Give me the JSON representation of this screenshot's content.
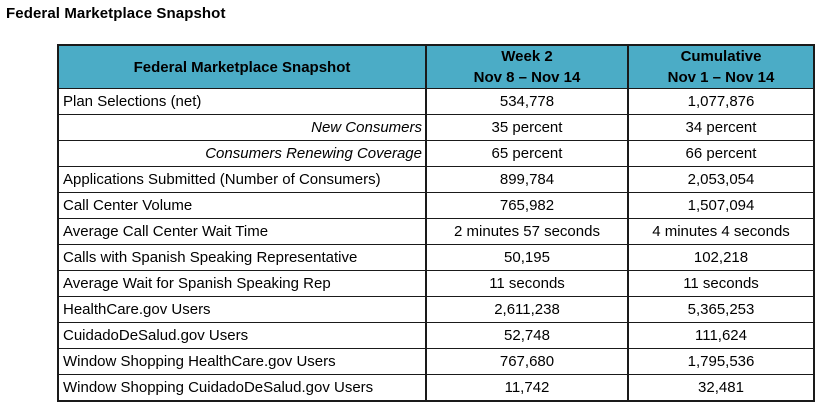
{
  "page": {
    "title": "Federal Marketplace Snapshot"
  },
  "colors": {
    "header_bg": "#4BACC6",
    "border": "#1A1A1A",
    "text": "#000000"
  },
  "table": {
    "header": {
      "label_col": "Federal Marketplace Snapshot",
      "week_col": {
        "title": "Week 2",
        "subtitle": "Nov 8 – Nov 14"
      },
      "cumulative_col": {
        "title": "Cumulative",
        "subtitle": "Nov 1 – Nov 14"
      }
    },
    "rows": [
      {
        "label": "Plan Selections (net)",
        "week2": "534,778",
        "cumulative": "1,077,876",
        "style": "normal"
      },
      {
        "label": "New Consumers",
        "week2": "35 percent",
        "cumulative": "34 percent",
        "style": "sub"
      },
      {
        "label": "Consumers Renewing Coverage",
        "week2": "65 percent",
        "cumulative": "66 percent",
        "style": "sub"
      },
      {
        "label": "Applications Submitted (Number of Consumers)",
        "week2": "899,784",
        "cumulative": "2,053,054",
        "style": "normal"
      },
      {
        "label": "Call Center Volume",
        "week2": "765,982",
        "cumulative": "1,507,094",
        "style": "normal"
      },
      {
        "label": "Average Call Center Wait Time",
        "week2": "2 minutes 57 seconds",
        "cumulative": "4 minutes 4 seconds",
        "style": "normal"
      },
      {
        "label": "Calls with Spanish Speaking Representative",
        "week2": "50,195",
        "cumulative": "102,218",
        "style": "normal"
      },
      {
        "label": "Average Wait for Spanish Speaking Rep",
        "week2": "11 seconds",
        "cumulative": "11 seconds",
        "style": "normal"
      },
      {
        "label": "HealthCare.gov Users",
        "week2": "2,611,238",
        "cumulative": "5,365,253",
        "style": "normal"
      },
      {
        "label": "CuidadoDeSalud.gov Users",
        "week2": "52,748",
        "cumulative": "111,624",
        "style": "normal"
      },
      {
        "label": "Window Shopping HealthCare.gov Users",
        "week2": "767,680",
        "cumulative": "1,795,536",
        "style": "normal"
      },
      {
        "label": "Window Shopping CuidadoDeSalud.gov Users",
        "week2": "11,742",
        "cumulative": "32,481",
        "style": "normal"
      }
    ]
  }
}
